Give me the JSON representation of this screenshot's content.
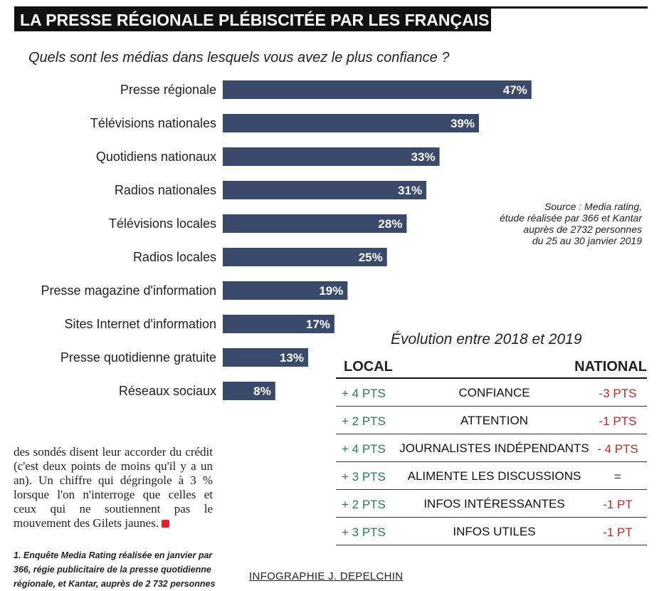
{
  "title": "LA PRESSE RÉGIONALE PLÉBISCITÉE PAR LES FRANÇAIS",
  "question": "Quels sont les médias dans lesquels vous avez le plus confiance ?",
  "chart_data": {
    "type": "bar",
    "orientation": "horizontal",
    "title": "Quels sont les médias dans lesquels vous avez le plus confiance ?",
    "categories": [
      "Presse régionale",
      "Télévisions nationales",
      "Quotidiens nationaux",
      "Radios nationales",
      "Télévisions locales",
      "Radios locales",
      "Presse magazine d'information",
      "Sites Internet d'information",
      "Presse quotidienne gratuite",
      "Réseaux sociaux"
    ],
    "values": [
      47,
      39,
      33,
      31,
      28,
      25,
      19,
      17,
      13,
      8
    ],
    "data_labels": [
      "47%",
      "39%",
      "33%",
      "31%",
      "28%",
      "25%",
      "19%",
      "17%",
      "13%",
      "8%"
    ],
    "unit": "%",
    "xlim": [
      0,
      100
    ],
    "bar_color": "#3b4a6b",
    "label_color": "#ffffff",
    "grid": false,
    "legend": "none"
  },
  "source": [
    "Source : Media rating,",
    "étude réalisée par 366 et Kantar",
    "auprès de 2732 personnes",
    "du 25 au 30 janvier 2019"
  ],
  "evolution": {
    "title": "Évolution entre 2018 et 2019",
    "local_header": "LOCAL",
    "national_header": "NATIONAL",
    "rows": [
      {
        "local": "+ 4 PTS",
        "label": "CONFIANCE",
        "national": "-3 PTS"
      },
      {
        "local": "+ 2 PTS",
        "label": "ATTENTION",
        "national": "-1 PTS"
      },
      {
        "local": "+ 4 PTS",
        "label": "JOURNALISTES INDÉPENDANTS",
        "national": "- 4 PTS"
      },
      {
        "local": "+ 3 PTS",
        "label": "ALIMENTE LES DISCUSSIONS",
        "national": "="
      },
      {
        "local": "+ 2 PTS",
        "label": "INFOS INTÉRESSANTES",
        "national": "-1 PT"
      },
      {
        "local": "+ 3 PTS",
        "label": "INFOS UTILES",
        "national": "-1 PT"
      }
    ],
    "colors": {
      "local": "#2a7a57",
      "national": "#c0292b"
    }
  },
  "body_text": "des sondés disent leur accorder du crédit (c'est deux points de moins qu'il y a un an). Un chiffre qui dégringole à 3 % lorsque l'on n'interroge que celles et ceux qui ne soutiennent pas le mouvement des Gilets jaunes.",
  "footnote": "1. Enquête Media Rating réalisée en janvier par 366, régie publicitaire de la presse quotidienne régionale, et Kantar, auprès de 2 732 personnes",
  "credit": "INFOGRAPHIE J. DEPELCHIN"
}
